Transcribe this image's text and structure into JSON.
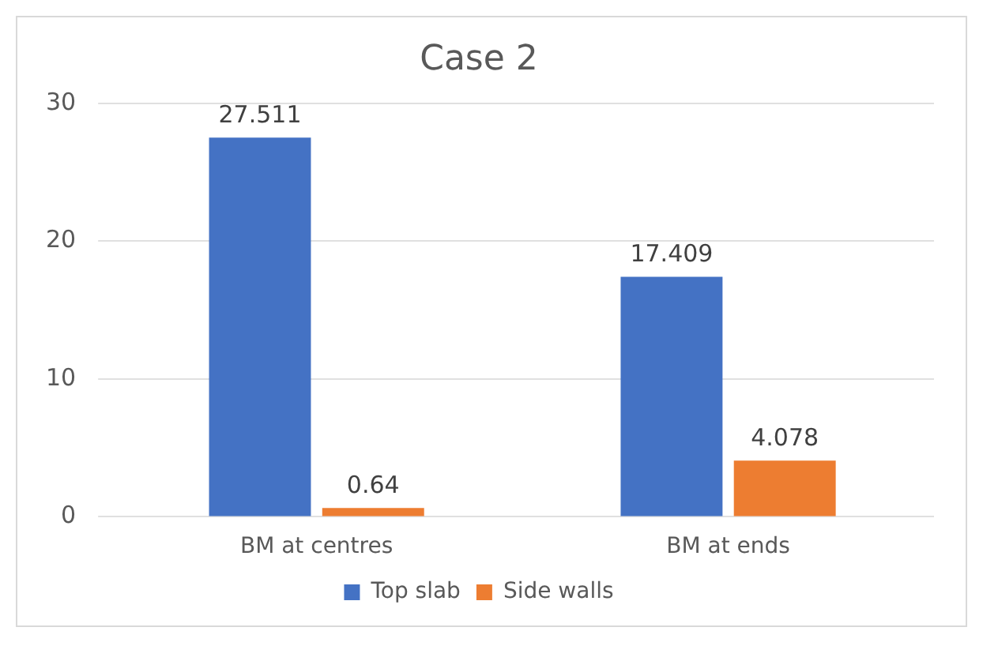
{
  "chart_data": {
    "type": "bar",
    "title": "Case 2",
    "categories": [
      "BM at centres",
      "BM at ends"
    ],
    "series": [
      {
        "name": "Top slab",
        "color": "#4472c4",
        "values": [
          27.511,
          17.409
        ]
      },
      {
        "name": "Side walls",
        "color": "#ed7d31",
        "values": [
          0.64,
          4.078
        ]
      }
    ],
    "ylim": [
      0,
      30
    ],
    "yticks": [
      0,
      10,
      20,
      30
    ],
    "grid": "y",
    "legend": "bottom",
    "data_labels": true
  }
}
